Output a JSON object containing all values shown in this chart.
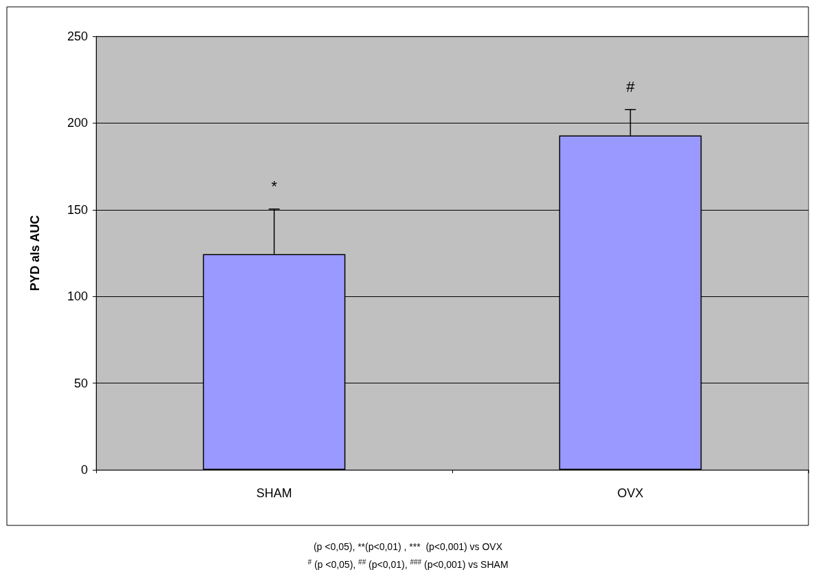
{
  "chart_data": {
    "type": "bar",
    "ylabel": "PYD als AUC",
    "categories": [
      "SHAM",
      "OVX"
    ],
    "values": [
      124.4,
      192.8
    ],
    "errors": [
      26,
      15
    ],
    "color": "#9999ff",
    "ylim": [
      0,
      250
    ],
    "yticks": [
      0,
      50,
      100,
      150,
      200,
      250
    ],
    "grid": "y",
    "annotations": [
      "*",
      "#",
      "(p <0,05), **(p<0,01) , ***  (p<0,001) vs OVX",
      "$^{#}$ (p <0,05), $^{##}$ (p<0,01), $^{###}$ (p<0,001) vs SHAM"
    ]
  }
}
